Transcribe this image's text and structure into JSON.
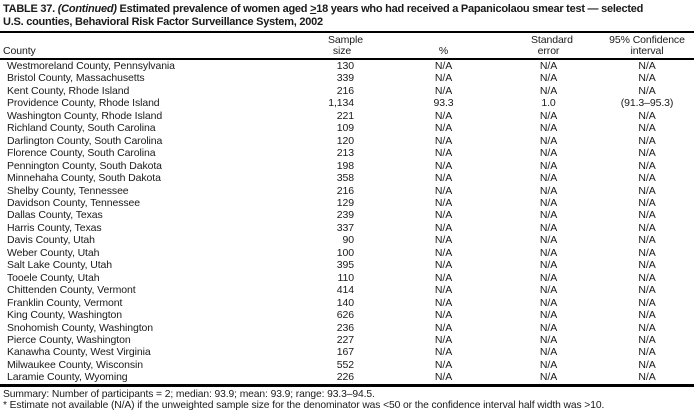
{
  "title": {
    "table_label": "TABLE 37. ",
    "continued": "(Continued)",
    "text_a": " Estimated prevalence of women aged ",
    "geq": ">",
    "text_b": "18 years who had received a Papanicolaou smear test — selected",
    "line2": "U.S. counties, Behavioral Risk Factor Surveillance System, 2002"
  },
  "columns": {
    "county": "County",
    "sample_line1": "Sample",
    "sample_line2": "size",
    "percent": "%",
    "stderr_line1": "Standard",
    "stderr_line2": "error",
    "ci_line1": "95% Confidence",
    "ci_line2": "interval"
  },
  "table": {
    "rows": [
      {
        "county": "Westmoreland County, Pennsylvania",
        "sample": "130",
        "pct": "N/A",
        "se": "N/A",
        "ci": "N/A"
      },
      {
        "county": "Bristol County, Massachusetts",
        "sample": "339",
        "pct": "N/A",
        "se": "N/A",
        "ci": "N/A"
      },
      {
        "county": "Kent County, Rhode Island",
        "sample": "216",
        "pct": "N/A",
        "se": "N/A",
        "ci": "N/A"
      },
      {
        "county": "Providence County, Rhode Island",
        "sample": "1,134",
        "pct": "93.3",
        "se": "1.0",
        "ci": "(91.3–95.3)"
      },
      {
        "county": "Washington County, Rhode Island",
        "sample": "221",
        "pct": "N/A",
        "se": "N/A",
        "ci": "N/A"
      },
      {
        "county": "Richland County, South Carolina",
        "sample": "109",
        "pct": "N/A",
        "se": "N/A",
        "ci": "N/A"
      },
      {
        "county": "Darlington County, South Carolina",
        "sample": "120",
        "pct": "N/A",
        "se": "N/A",
        "ci": "N/A"
      },
      {
        "county": "Florence County, South Carolina",
        "sample": "213",
        "pct": "N/A",
        "se": "N/A",
        "ci": "N/A"
      },
      {
        "county": "Pennington County, South Dakota",
        "sample": "198",
        "pct": "N/A",
        "se": "N/A",
        "ci": "N/A"
      },
      {
        "county": "Minnehaha County, South Dakota",
        "sample": "358",
        "pct": "N/A",
        "se": "N/A",
        "ci": "N/A"
      },
      {
        "county": "Shelby County, Tennessee",
        "sample": "216",
        "pct": "N/A",
        "se": "N/A",
        "ci": "N/A"
      },
      {
        "county": "Davidson County, Tennessee",
        "sample": "129",
        "pct": "N/A",
        "se": "N/A",
        "ci": "N/A"
      },
      {
        "county": "Dallas County, Texas",
        "sample": "239",
        "pct": "N/A",
        "se": "N/A",
        "ci": "N/A"
      },
      {
        "county": "Harris County, Texas",
        "sample": "337",
        "pct": "N/A",
        "se": "N/A",
        "ci": "N/A"
      },
      {
        "county": "Davis County, Utah",
        "sample": "90",
        "pct": "N/A",
        "se": "N/A",
        "ci": "N/A"
      },
      {
        "county": "Weber County, Utah",
        "sample": "100",
        "pct": "N/A",
        "se": "N/A",
        "ci": "N/A"
      },
      {
        "county": "Salt Lake County, Utah",
        "sample": "395",
        "pct": "N/A",
        "se": "N/A",
        "ci": "N/A"
      },
      {
        "county": "Tooele County, Utah",
        "sample": "110",
        "pct": "N/A",
        "se": "N/A",
        "ci": "N/A"
      },
      {
        "county": "Chittenden County, Vermont",
        "sample": "414",
        "pct": "N/A",
        "se": "N/A",
        "ci": "N/A"
      },
      {
        "county": "Franklin County, Vermont",
        "sample": "140",
        "pct": "N/A",
        "se": "N/A",
        "ci": "N/A"
      },
      {
        "county": "King County, Washington",
        "sample": "626",
        "pct": "N/A",
        "se": "N/A",
        "ci": "N/A"
      },
      {
        "county": "Snohomish County, Washington",
        "sample": "236",
        "pct": "N/A",
        "se": "N/A",
        "ci": "N/A"
      },
      {
        "county": "Pierce County, Washington",
        "sample": "227",
        "pct": "N/A",
        "se": "N/A",
        "ci": "N/A"
      },
      {
        "county": "Kanawha County, West Virginia",
        "sample": "167",
        "pct": "N/A",
        "se": "N/A",
        "ci": "N/A"
      },
      {
        "county": "Milwaukee County, Wisconsin",
        "sample": "552",
        "pct": "N/A",
        "se": "N/A",
        "ci": "N/A"
      },
      {
        "county": "Laramie County, Wyoming",
        "sample": "226",
        "pct": "N/A",
        "se": "N/A",
        "ci": "N/A"
      }
    ]
  },
  "footer": {
    "summary": "Summary: Number of participants = 2; median: 93.9; mean: 93.9; range: 93.3–94.5.",
    "footnote": "* Estimate not available (N/A) if the unweighted sample size for the denominator was <50 or the confidence interval half width was >10."
  }
}
